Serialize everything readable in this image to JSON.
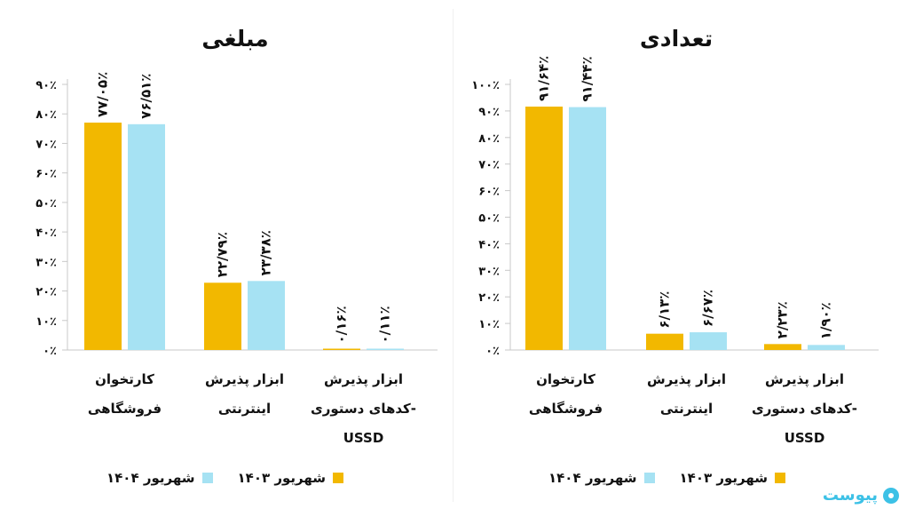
{
  "colors": {
    "series_1403": "#f2b800",
    "series_1404": "#a6e2f3",
    "axis": "#c8c8c8",
    "brand": "#3cc1e6"
  },
  "legend": {
    "s1403": "شهریور ۱۴۰۳",
    "s1404": "شهریور ۱۴۰۴"
  },
  "brand": {
    "name": "پیوست",
    "icon": "brand-circle-icon"
  },
  "chart_data": [
    {
      "type": "bar",
      "title": "مبلغی",
      "categories": [
        [
          "کارتخوان",
          "فروشگاهی"
        ],
        [
          "ابزار پذیرش",
          "اینترنتی"
        ],
        [
          "ابزار پذیرش",
          "کدهای دستوری-",
          "USSD"
        ]
      ],
      "series": [
        {
          "name": "شهریور ۱۴۰۳",
          "values": [
            77.05,
            22.79,
            0.16
          ],
          "labels": [
            "۷۷/۰۵٪",
            "۲۲/۷۹٪",
            "۰/۱۶٪"
          ]
        },
        {
          "name": "شهریور ۱۴۰۴",
          "values": [
            76.51,
            23.38,
            0.11
          ],
          "labels": [
            "۷۶/۵۱٪",
            "۲۳/۳۸٪",
            "۰/۱۱٪"
          ]
        }
      ],
      "yticks": [
        "۰٪",
        "۱۰٪",
        "۲۰٪",
        "۳۰٪",
        "۴۰٪",
        "۵۰٪",
        "۶۰٪",
        "۷۰٪",
        "۸۰٪",
        "۹۰٪"
      ],
      "ylim": [
        0,
        90
      ],
      "grid": false
    },
    {
      "type": "bar",
      "title": "تعدادی",
      "categories": [
        [
          "کارتخوان",
          "فروشگاهی"
        ],
        [
          "ابزار پذیرش",
          "اینترنتی"
        ],
        [
          "ابزار پذیرش",
          "کدهای دستوری-",
          "USSD"
        ]
      ],
      "series": [
        {
          "name": "شهریور ۱۴۰۳",
          "values": [
            91.64,
            6.13,
            2.23
          ],
          "labels": [
            "۹۱/۶۴٪",
            "۶/۱۳٪",
            "۲/۲۳٪"
          ]
        },
        {
          "name": "شهریور ۱۴۰۴",
          "values": [
            91.44,
            6.67,
            1.9
          ],
          "labels": [
            "۹۱/۴۴٪",
            "۶/۶۷٪",
            "۱/۹۰٪"
          ]
        }
      ],
      "yticks": [
        "۰٪",
        "۱۰٪",
        "۲۰٪",
        "۳۰٪",
        "۴۰٪",
        "۵۰٪",
        "۶۰٪",
        "۷۰٪",
        "۸۰٪",
        "۹۰٪",
        "۱۰۰٪"
      ],
      "ylim": [
        0,
        100
      ],
      "grid": false
    }
  ]
}
